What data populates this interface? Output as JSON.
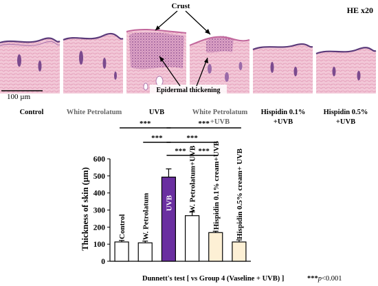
{
  "panel_top": {
    "magnification": "HE x20",
    "scale_bar_label": "100 µm",
    "annotations": {
      "crust": "Crust",
      "epidermal": "Epidermal thickening"
    },
    "panels": [
      {
        "label": "Control",
        "label2": "",
        "label_color": "#000000"
      },
      {
        "label": "White Petrolatum",
        "label2": "",
        "label_color": "#666666"
      },
      {
        "label": "UVB",
        "label2": "",
        "label_color": "#000000"
      },
      {
        "label": "White Petrolatum",
        "label2": "+UVB",
        "label_color": "#666666"
      },
      {
        "label": "Hispidin 0.1%",
        "label2": "+UVB",
        "label_color": "#000000"
      },
      {
        "label": "Hispidin 0.5%",
        "label2": "+UVB",
        "label_color": "#000000"
      }
    ]
  },
  "chart_data": {
    "type": "bar",
    "categories": [
      "Control",
      "W. Petrolatum",
      "UVB",
      "W. Petrolatum+UVB",
      "Hispidin 0.1% cream+UVB",
      "Hispidin 0.5% cream+ UVB"
    ],
    "values": [
      113,
      108,
      493,
      267,
      168,
      113
    ],
    "errors": [
      9,
      10,
      48,
      22,
      8,
      12
    ],
    "bar_colors": [
      "#ffffff",
      "#ffffff",
      "#6a2fa0",
      "#ffffff",
      "#fdf0d5",
      "#fdf0d5"
    ],
    "label_colors": [
      "#000000",
      "#000000",
      "#ffffff",
      "#000000",
      "#000000",
      "#000000"
    ],
    "ylabel": "Thickness of skin (µm)",
    "ylim": [
      0,
      600
    ],
    "yticks": [
      0,
      100,
      200,
      300,
      400,
      500,
      600
    ],
    "significance": [
      {
        "from": 0,
        "to": 2,
        "label": "***"
      },
      {
        "from": 2,
        "to": 5,
        "label": "***"
      },
      {
        "from": 1,
        "to": 2,
        "label": "***"
      },
      {
        "from": 2,
        "to": 4,
        "label": "***"
      },
      {
        "from": 2,
        "to": 3,
        "label": "***"
      },
      {
        "from": 3,
        "to": 4,
        "label": "***"
      }
    ],
    "footer": "Dunnett's test [ vs Group 4 (Vaseline + UVB) ]",
    "pvalue_stars": "***",
    "pvalue_p": "p",
    "pvalue_rest": "<0.001"
  }
}
